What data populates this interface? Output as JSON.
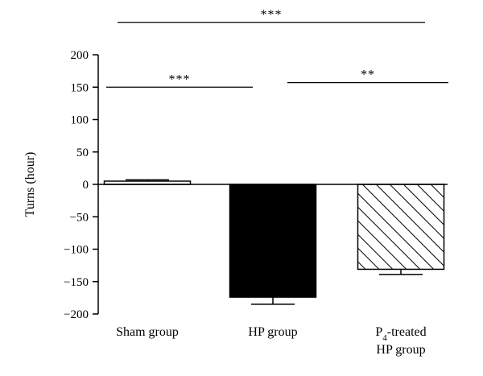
{
  "chart_data": {
    "type": "bar",
    "title": "",
    "ylabel": "Turns (hour)",
    "xlabel": "",
    "ylim": [
      -200,
      200
    ],
    "yticks": [
      200,
      150,
      100,
      50,
      0,
      -50,
      -100,
      -150,
      -200
    ],
    "categories": [
      {
        "label": "Sham group",
        "lines": [
          "Sham group"
        ]
      },
      {
        "label": "HP group",
        "lines": [
          "HP group"
        ]
      },
      {
        "label": "P4-treated HP group",
        "lines": [
          "P_4-treated",
          "HP group"
        ]
      }
    ],
    "values": [
      5,
      -174,
      -131
    ],
    "errors": [
      2,
      11,
      8
    ],
    "fills": [
      "white",
      "black",
      "hatched"
    ],
    "significance": [
      {
        "from": 0,
        "to": 2,
        "label": "***",
        "y": 250
      },
      {
        "from": 0,
        "to": 1,
        "label": "***",
        "y": 150
      },
      {
        "from": 1,
        "to": 2,
        "label": "**",
        "y": 157
      }
    ],
    "grid": false
  }
}
